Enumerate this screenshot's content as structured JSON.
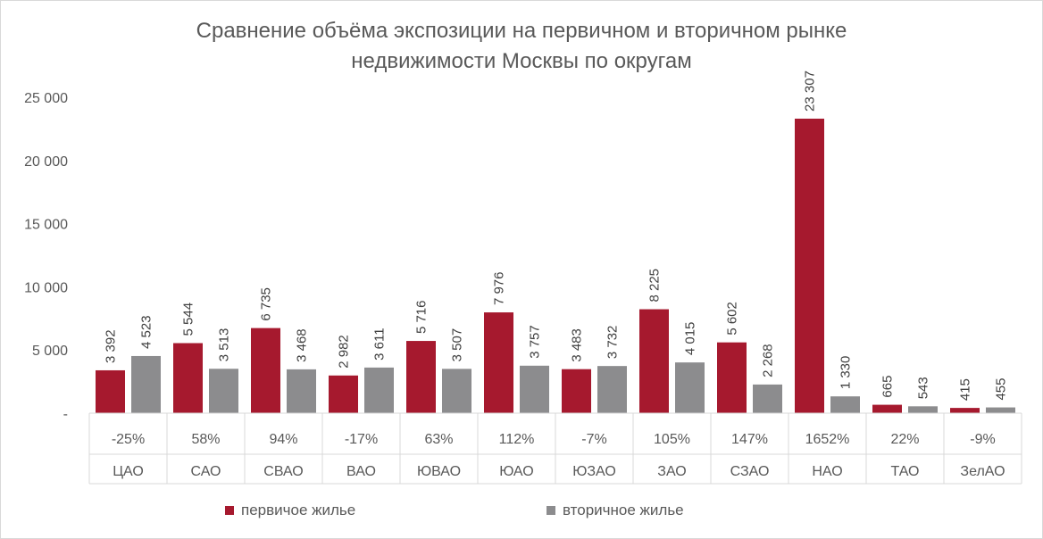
{
  "chart_data": {
    "type": "bar",
    "title": "Сравнение объёма экспозиции на первичном и вторичном рынке недвижимости Москвы по округам",
    "title_lines": [
      "Сравнение объёма экспозиции на первичном и вторичном рынке",
      "недвижимости Москвы по округам"
    ],
    "categories": [
      "ЦАО",
      "САО",
      "СВАО",
      "ВАО",
      "ЮВАО",
      "ЮАО",
      "ЮЗАО",
      "ЗАО",
      "СЗАО",
      "НАО",
      "ТАО",
      "ЗелАО"
    ],
    "series": [
      {
        "name": "первичое жилье",
        "color": "#a6192e",
        "values": [
          3392,
          5544,
          6735,
          2982,
          5716,
          7976,
          3483,
          8225,
          5602,
          23307,
          665,
          415
        ],
        "labels": [
          "3 392",
          "5 544",
          "6 735",
          "2 982",
          "5 716",
          "7 976",
          "3 483",
          "8 225",
          "5 602",
          "23 307",
          "665",
          "415"
        ]
      },
      {
        "name": "вторичное жилье",
        "color": "#8c8c8e",
        "values": [
          4523,
          3513,
          3468,
          3611,
          3507,
          3757,
          3732,
          4015,
          2268,
          1330,
          543,
          455
        ],
        "labels": [
          "4 523",
          "3 513",
          "3 468",
          "3 611",
          "3 507",
          "3 757",
          "3 732",
          "4 015",
          "2 268",
          "1 330",
          "543",
          "455"
        ]
      }
    ],
    "table_row": [
      "-25%",
      "58%",
      "94%",
      "-17%",
      "63%",
      "112%",
      "-7%",
      "105%",
      "147%",
      "1652%",
      "22%",
      "-9%"
    ],
    "yticks": [
      0,
      5000,
      10000,
      15000,
      20000,
      25000
    ],
    "ytick_labels": [
      "-",
      "5 000",
      "10 000",
      "15 000",
      "20 000",
      "25 000"
    ],
    "ylim": [
      0,
      25000
    ],
    "grid": false,
    "legend_position": "bottom"
  }
}
